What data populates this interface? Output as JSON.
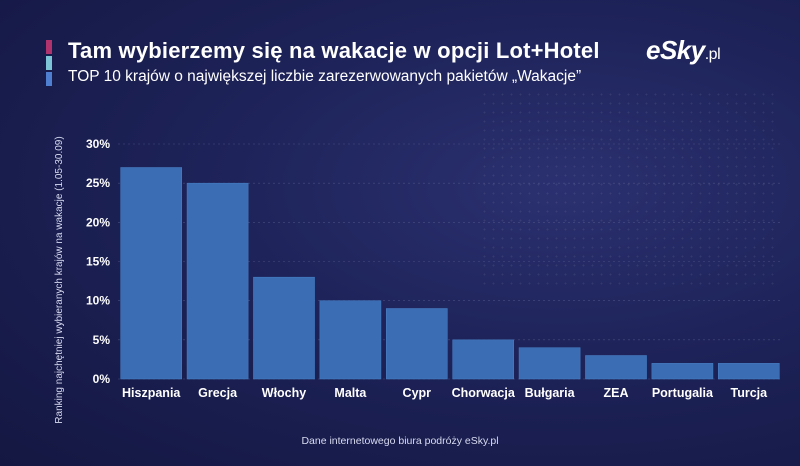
{
  "header": {
    "title": "Tam wybierzemy się na wakacje w opcji Lot+Hotel",
    "subtitle": "TOP 10 krajów o największej liczbie zarezerwowanych pakietów „Wakacje”",
    "accent_colors": [
      "#b0336d",
      "#7cc4d6",
      "#4f7fd0"
    ]
  },
  "logo": {
    "main": "eSky",
    "suffix": ".pl"
  },
  "footer": {
    "source": "Dane internetowego biura podróży eSky.pl"
  },
  "colors": {
    "bar": "#3a6db3",
    "bar_edge": "#4a82c8",
    "grid": "#5a5f8f",
    "axis_text": "#ffffff"
  },
  "chart_data": {
    "type": "bar",
    "title": "Tam wybierzemy się na wakacje w opcji Lot+Hotel",
    "subtitle": "TOP 10 krajów o największej liczbie zarezerwowanych pakietów „Wakacje”",
    "xlabel": "",
    "ylabel": "Ranking najchętniej wybieranych krajów na wakacje (1.05-30.09)",
    "categories": [
      "Hiszpania",
      "Grecja",
      "Włochy",
      "Malta",
      "Cypr",
      "Chorwacja",
      "Bułgaria",
      "ZEA",
      "Portugalia",
      "Turcja"
    ],
    "values": [
      27,
      25,
      13,
      10,
      9,
      5,
      4,
      3,
      2,
      2
    ],
    "ylim": [
      0,
      30
    ],
    "yticks": [
      0,
      5,
      10,
      15,
      20,
      25,
      30
    ],
    "ytick_labels": [
      "0%",
      "5%",
      "10%",
      "15%",
      "20%",
      "25%",
      "30%"
    ],
    "grid": true,
    "legend": "none"
  }
}
